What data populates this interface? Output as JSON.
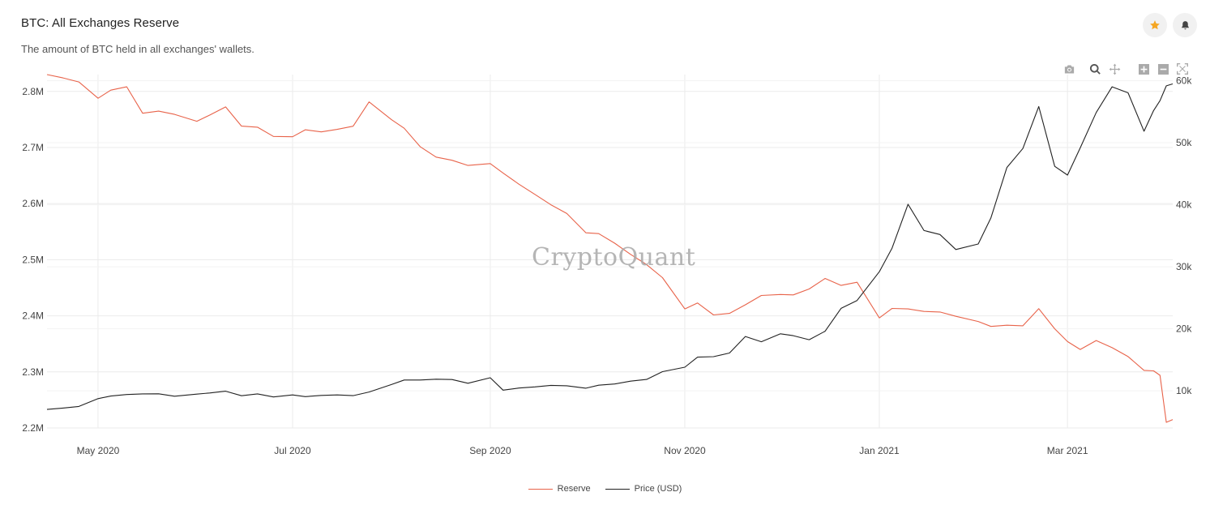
{
  "header": {
    "title": "BTC: All Exchanges Reserve",
    "subtitle": "The amount of BTC held in all exchanges' wallets."
  },
  "actions": {
    "favorite_icon": "star-icon",
    "favorite_color": "#f5a623",
    "alert_icon": "bell-icon"
  },
  "modebar": [
    "camera-icon",
    "zoom-icon",
    "pan-icon",
    "zoom-in-icon",
    "zoom-out-icon",
    "autoscale-icon"
  ],
  "watermark": "CryptoQuant",
  "chart_data": {
    "type": "line",
    "title": "BTC: All Exchanges Reserve",
    "xlabel": "",
    "x_tick_labels": [
      "May 2020",
      "Jul 2020",
      "Sep 2020",
      "Nov 2020",
      "Jan 2021",
      "Mar 2021"
    ],
    "x_tick_dates": [
      "2020-05-01",
      "2020-07-01",
      "2020-09-01",
      "2020-11-01",
      "2021-01-01",
      "2021-03-01"
    ],
    "x_range": [
      "2020-04-15",
      "2021-04-03"
    ],
    "y_left": {
      "ticks": [
        "2.2M",
        "2.3M",
        "2.4M",
        "2.5M",
        "2.6M",
        "2.7M",
        "2.8M"
      ],
      "range": [
        2200000,
        2830000
      ]
    },
    "y_right": {
      "ticks": [
        "10k",
        "20k",
        "30k",
        "40k",
        "50k",
        "60k"
      ],
      "range": [
        4000,
        61000
      ]
    },
    "grid": true,
    "legend_position": "bottom-center",
    "series": [
      {
        "name": "Reserve",
        "axis": "left",
        "color": "#e8634a",
        "x": [
          "2020-04-15",
          "2020-04-20",
          "2020-04-25",
          "2020-05-01",
          "2020-05-05",
          "2020-05-10",
          "2020-05-15",
          "2020-05-20",
          "2020-05-25",
          "2020-06-01",
          "2020-06-05",
          "2020-06-10",
          "2020-06-15",
          "2020-06-20",
          "2020-06-25",
          "2020-07-01",
          "2020-07-05",
          "2020-07-10",
          "2020-07-15",
          "2020-07-20",
          "2020-07-25",
          "2020-08-01",
          "2020-08-05",
          "2020-08-10",
          "2020-08-15",
          "2020-08-20",
          "2020-08-25",
          "2020-09-01",
          "2020-09-05",
          "2020-09-10",
          "2020-09-15",
          "2020-09-20",
          "2020-09-25",
          "2020-10-01",
          "2020-10-05",
          "2020-10-10",
          "2020-10-15",
          "2020-10-20",
          "2020-10-25",
          "2020-11-01",
          "2020-11-05",
          "2020-11-10",
          "2020-11-15",
          "2020-11-20",
          "2020-11-25",
          "2020-12-01",
          "2020-12-05",
          "2020-12-10",
          "2020-12-15",
          "2020-12-20",
          "2020-12-25",
          "2021-01-01",
          "2021-01-05",
          "2021-01-10",
          "2021-01-15",
          "2021-01-20",
          "2021-01-25",
          "2021-02-01",
          "2021-02-05",
          "2021-02-10",
          "2021-02-15",
          "2021-02-20",
          "2021-02-25",
          "2021-03-01",
          "2021-03-05",
          "2021-03-10",
          "2021-03-15",
          "2021-03-20",
          "2021-03-25",
          "2021-03-28",
          "2021-03-30",
          "2021-04-01",
          "2021-04-03"
        ],
        "values": [
          2830000,
          2825000,
          2815000,
          2790000,
          2800000,
          2810000,
          2760000,
          2765000,
          2760000,
          2745000,
          2760000,
          2770000,
          2740000,
          2735000,
          2720000,
          2720000,
          2730000,
          2730000,
          2730000,
          2740000,
          2780000,
          2750000,
          2735000,
          2700000,
          2685000,
          2675000,
          2670000,
          2670000,
          2655000,
          2635000,
          2615000,
          2600000,
          2580000,
          2550000,
          2545000,
          2530000,
          2510000,
          2490000,
          2470000,
          2410000,
          2425000,
          2400000,
          2405000,
          2420000,
          2435000,
          2440000,
          2435000,
          2450000,
          2465000,
          2455000,
          2460000,
          2395000,
          2415000,
          2410000,
          2410000,
          2405000,
          2400000,
          2390000,
          2380000,
          2385000,
          2380000,
          2415000,
          2375000,
          2355000,
          2340000,
          2355000,
          2345000,
          2325000,
          2305000,
          2300000,
          2295000,
          2210000,
          2215000
        ]
      },
      {
        "name": "Price (USD)",
        "axis": "right",
        "color": "#222222",
        "x": [
          "2020-04-15",
          "2020-04-20",
          "2020-04-25",
          "2020-05-01",
          "2020-05-05",
          "2020-05-10",
          "2020-05-15",
          "2020-05-20",
          "2020-05-25",
          "2020-06-01",
          "2020-06-05",
          "2020-06-10",
          "2020-06-15",
          "2020-06-20",
          "2020-06-25",
          "2020-07-01",
          "2020-07-05",
          "2020-07-10",
          "2020-07-15",
          "2020-07-20",
          "2020-07-25",
          "2020-08-01",
          "2020-08-05",
          "2020-08-10",
          "2020-08-15",
          "2020-08-20",
          "2020-08-25",
          "2020-09-01",
          "2020-09-05",
          "2020-09-10",
          "2020-09-15",
          "2020-09-20",
          "2020-09-25",
          "2020-10-01",
          "2020-10-05",
          "2020-10-10",
          "2020-10-15",
          "2020-10-20",
          "2020-10-25",
          "2020-11-01",
          "2020-11-05",
          "2020-11-10",
          "2020-11-15",
          "2020-11-20",
          "2020-11-25",
          "2020-12-01",
          "2020-12-05",
          "2020-12-10",
          "2020-12-15",
          "2020-12-20",
          "2020-12-25",
          "2021-01-01",
          "2021-01-05",
          "2021-01-10",
          "2021-01-15",
          "2021-01-20",
          "2021-01-25",
          "2021-02-01",
          "2021-02-05",
          "2021-02-10",
          "2021-02-15",
          "2021-02-20",
          "2021-02-25",
          "2021-03-01",
          "2021-03-05",
          "2021-03-10",
          "2021-03-15",
          "2021-03-20",
          "2021-03-25",
          "2021-03-28",
          "2021-03-30",
          "2021-04-01",
          "2021-04-03"
        ],
        "values": [
          7000,
          7100,
          7500,
          8800,
          9000,
          9600,
          9300,
          9700,
          9000,
          9500,
          9700,
          9800,
          9400,
          9300,
          9200,
          9200,
          9100,
          9300,
          9200,
          9400,
          9600,
          11200,
          11600,
          11800,
          11900,
          11700,
          11400,
          11900,
          10300,
          10300,
          10700,
          10900,
          10700,
          10600,
          10700,
          11300,
          11400,
          11900,
          13100,
          13700,
          15600,
          15300,
          16300,
          18600,
          18000,
          19200,
          18800,
          18400,
          19400,
          23500,
          24400,
          29300,
          33000,
          40000,
          36000,
          35000,
          33000,
          33500,
          38000,
          46000,
          49000,
          56000,
          46000,
          45000,
          49000,
          55000,
          59000,
          58000,
          52000,
          55000,
          57000,
          59000,
          59500
        ]
      }
    ]
  },
  "legend": [
    {
      "label": "Reserve",
      "color": "#e8634a"
    },
    {
      "label": "Price (USD)",
      "color": "#222222"
    }
  ]
}
